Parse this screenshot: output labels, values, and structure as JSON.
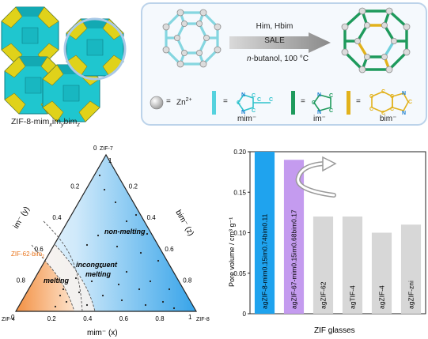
{
  "top_left": {
    "label_base": "ZIF-8-mim",
    "label_x": "x",
    "label_im": "im",
    "label_y": "y",
    "label_bim": "bim",
    "label_z": "z"
  },
  "reaction": {
    "reagents": "Him, Hbim",
    "method": "SALE",
    "solvent_prefix": "n",
    "conditions": "-butanol, 100 °C"
  },
  "legend": {
    "zn_label": "Zn",
    "zn_charge": "2+",
    "mim_label": "mim⁻",
    "im_label": "im⁻",
    "bim_label": "bim⁻",
    "equals": "="
  },
  "ternary": {
    "corner_top": "ZIF-7",
    "corner_left": "ZIF-4",
    "corner_right": "ZIF-8",
    "left_axis": "im⁻ (y)",
    "right_axis": "bim⁻ (z)",
    "bottom_axis": "mim⁻ (x)",
    "region_nonmelting": "non-melting",
    "region_incongruent_1": "incongruent",
    "region_incongruent_2": "melting",
    "region_melting": "melting",
    "zif62_label": "ZIF-62-bim",
    "zif62_sub": "z",
    "ticks": [
      "0",
      "0.2",
      "0.4",
      "0.6",
      "0.8",
      "1"
    ],
    "colors": {
      "blue": "#1e9be6",
      "orange": "#f07a1e"
    }
  },
  "chart_data": {
    "type": "bar",
    "ylabel": "Pore volume / cm³ g⁻¹",
    "xlabel": "ZIF glasses",
    "ylim": [
      0,
      0.2
    ],
    "yticks": [
      "0",
      "0.05",
      "0.10",
      "0.15",
      "0.20"
    ],
    "categories": [
      "agZIF-8-mim0.15im0.74bim0.11",
      "agZIF-67-mim0.15im0.68bim0.17",
      "agZIF-62",
      "agTIF-4",
      "agZIF-4",
      "agZIF-zni"
    ],
    "values": [
      0.2,
      0.19,
      0.12,
      0.12,
      0.1,
      0.11
    ],
    "colors": [
      "#1fa3ee",
      "#c49bef",
      "#d7d7d7",
      "#d7d7d7",
      "#d7d7d7",
      "#d7d7d7"
    ]
  }
}
